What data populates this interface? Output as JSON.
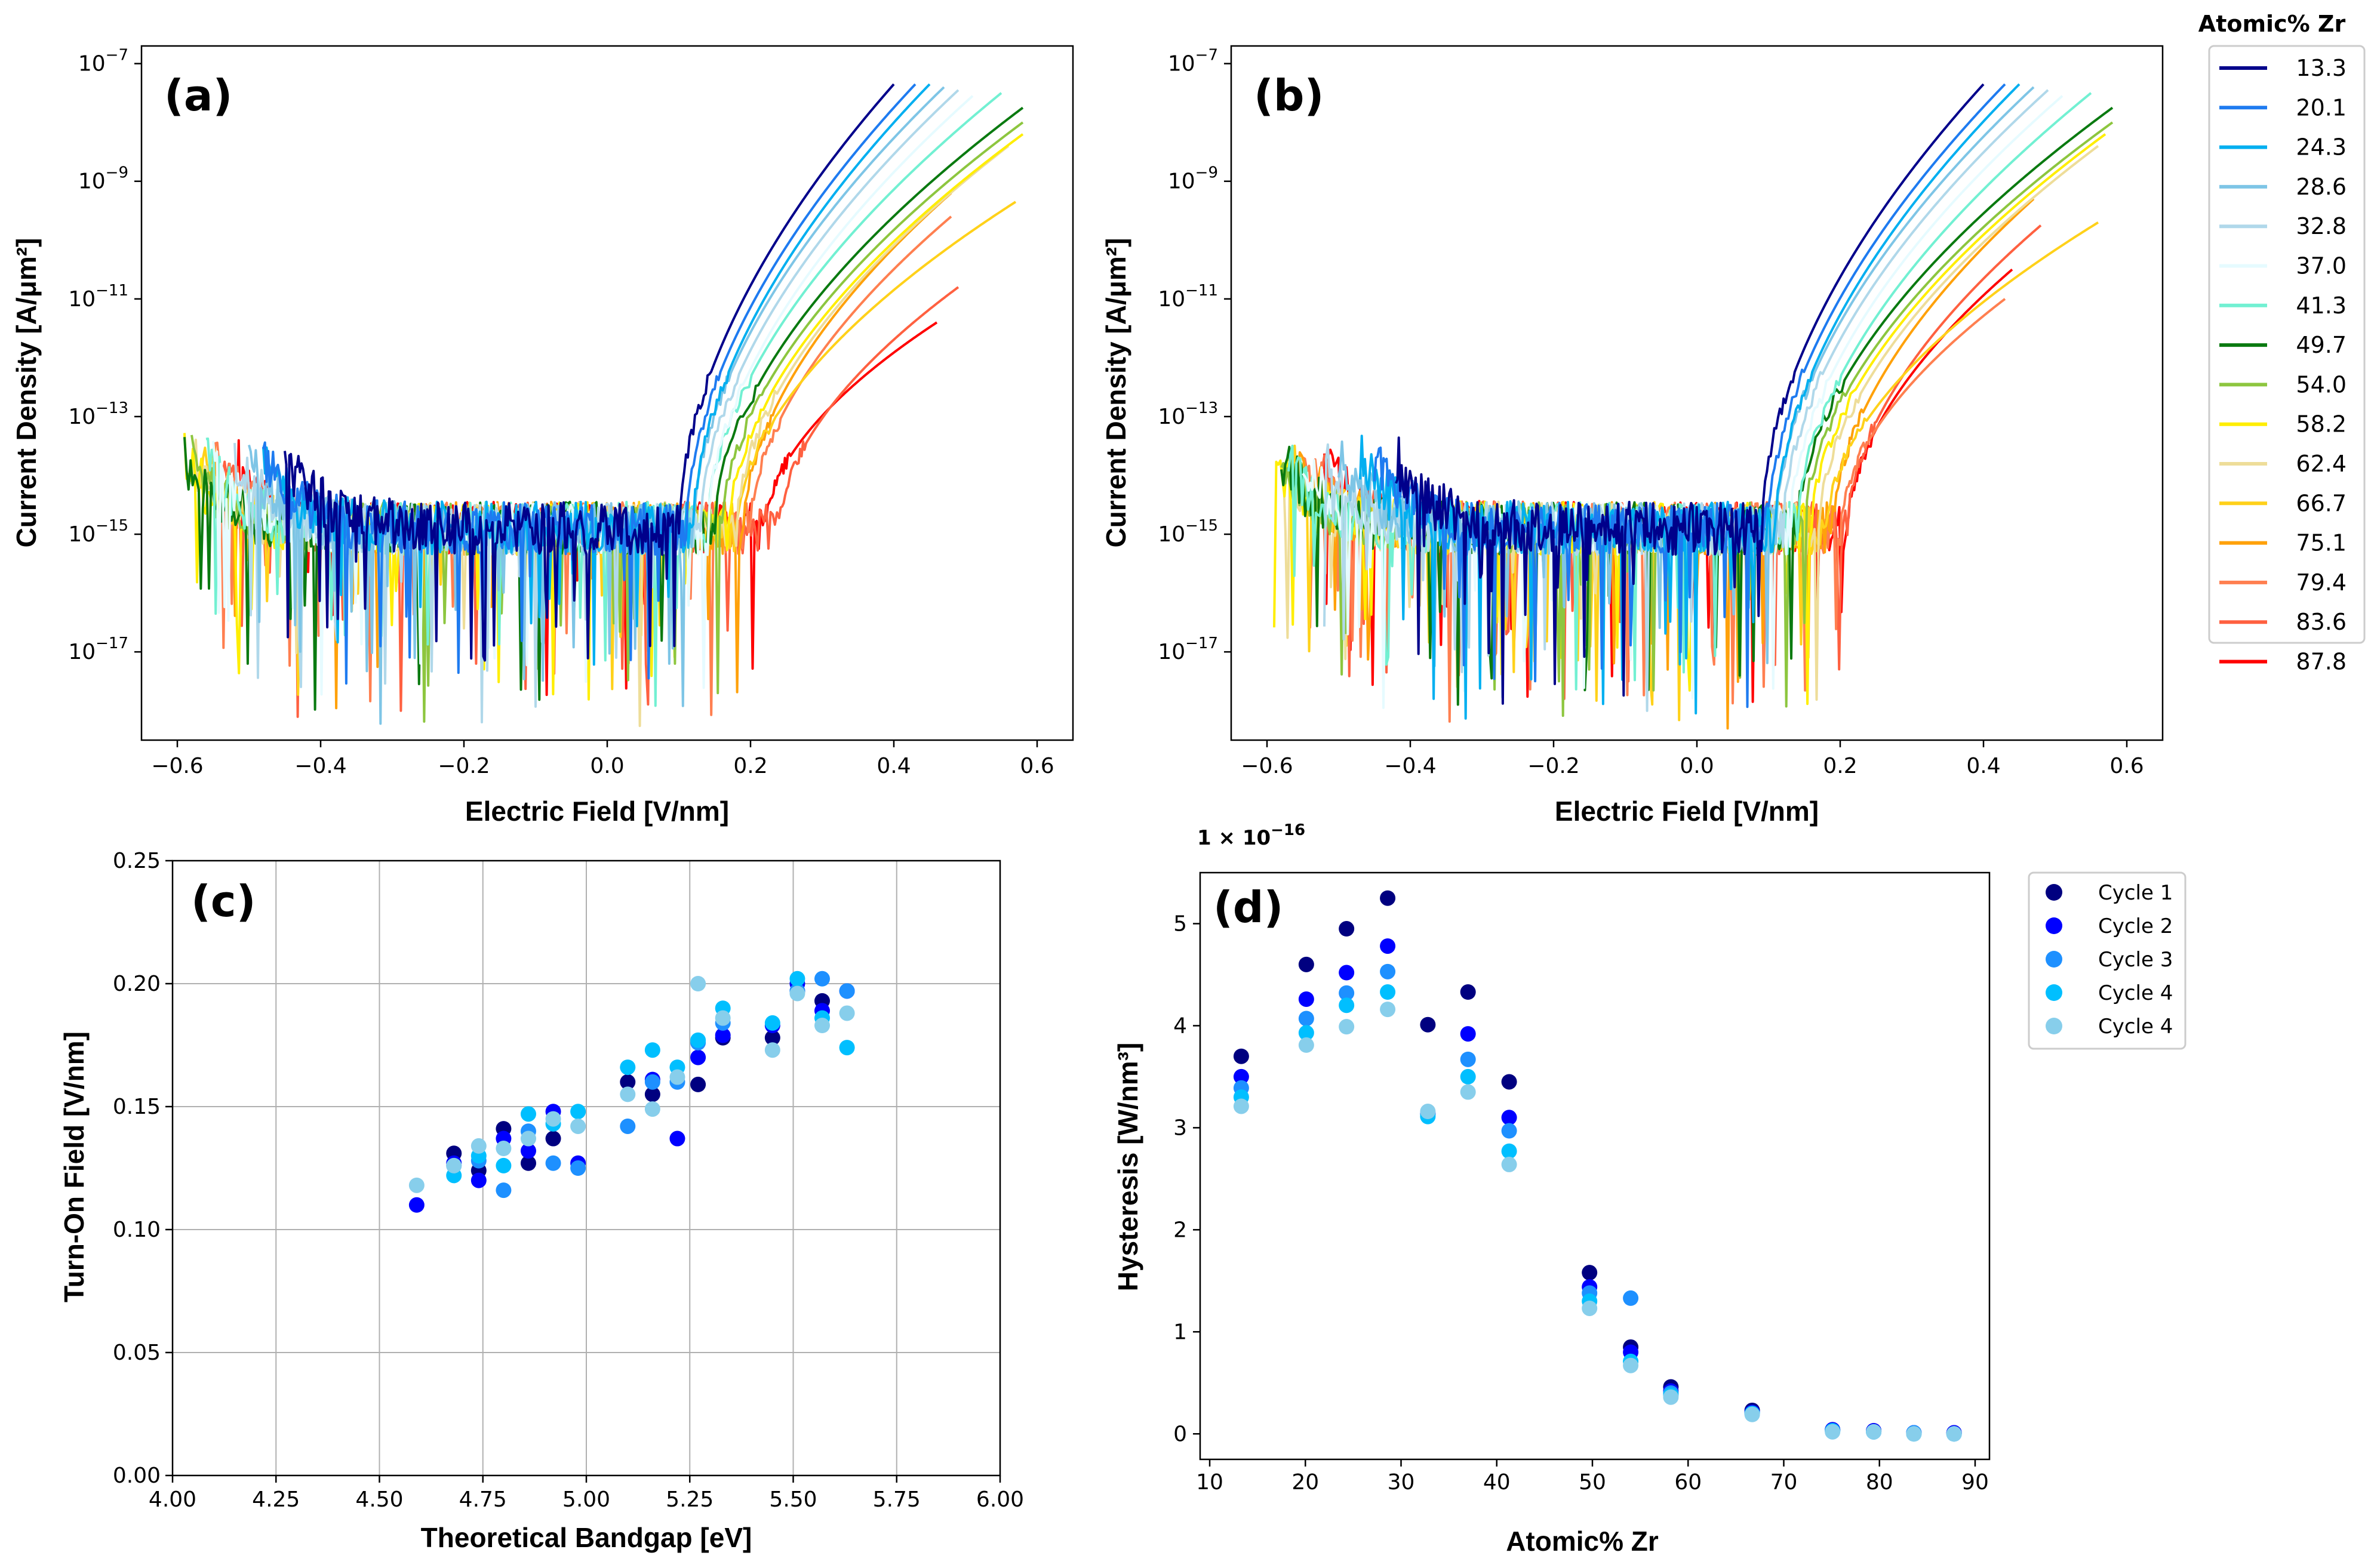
{
  "composition_legend": {
    "title": "Atomic% Zr",
    "items": [
      {
        "label": "13.3",
        "color": "#00008b"
      },
      {
        "label": "20.1",
        "color": "#1e7bf0"
      },
      {
        "label": "24.3",
        "color": "#00aff0"
      },
      {
        "label": "28.6",
        "color": "#7ec5e6"
      },
      {
        "label": "32.8",
        "color": "#b0d8ea"
      },
      {
        "label": "37.0",
        "color": "#e6fbff"
      },
      {
        "label": "41.3",
        "color": "#72f0d2"
      },
      {
        "label": "49.7",
        "color": "#0a7a10"
      },
      {
        "label": "54.0",
        "color": "#8dc63f"
      },
      {
        "label": "58.2",
        "color": "#ffee00"
      },
      {
        "label": "62.4",
        "color": "#eedd99"
      },
      {
        "label": "66.7",
        "color": "#ffd11a"
      },
      {
        "label": "75.1",
        "color": "#ffa10a"
      },
      {
        "label": "79.4",
        "color": "#ff7f50"
      },
      {
        "label": "83.6",
        "color": "#ff6040"
      },
      {
        "label": "87.8",
        "color": "#ff0000"
      }
    ]
  },
  "chart_data": [
    {
      "panel": "(a)",
      "type": "line",
      "xlabel": "Electric Field [V/nm]",
      "ylabel": "Current Density [A/μm²]",
      "yscale": "log",
      "xlim": [
        -0.65,
        0.65
      ],
      "ylim_exp": [
        -18.5,
        -6.7
      ],
      "xticks": [
        "−0.6",
        "−0.4",
        "−0.2",
        "0.0",
        "0.2",
        "0.4",
        "0.6"
      ],
      "yticks": [
        {
          "base": "10",
          "exp": "−7"
        },
        {
          "base": "10",
          "exp": "−9"
        },
        {
          "base": "10",
          "exp": "−11"
        },
        {
          "base": "10",
          "exp": "−13"
        },
        {
          "base": "10",
          "exp": "−15"
        },
        {
          "base": "10",
          "exp": "−17"
        }
      ],
      "noise_floor_log10": -14.9,
      "series": [
        {
          "name": "13.3",
          "x_min": -0.45,
          "onset": 0.1,
          "x_end": 0.4,
          "y_end_log10": -7.35
        },
        {
          "name": "20.1",
          "x_min": -0.48,
          "onset": 0.11,
          "x_end": 0.43,
          "y_end_log10": -7.35
        },
        {
          "name": "24.3",
          "x_min": -0.48,
          "onset": 0.12,
          "x_end": 0.45,
          "y_end_log10": -7.35
        },
        {
          "name": "28.6",
          "x_min": -0.5,
          "onset": 0.12,
          "x_end": 0.47,
          "y_end_log10": -7.4
        },
        {
          "name": "32.8",
          "x_min": -0.52,
          "onset": 0.13,
          "x_end": 0.49,
          "y_end_log10": -7.45
        },
        {
          "name": "37.0",
          "x_min": -0.55,
          "onset": 0.14,
          "x_end": 0.51,
          "y_end_log10": -7.55
        },
        {
          "name": "41.3",
          "x_min": -0.56,
          "onset": 0.14,
          "x_end": 0.55,
          "y_end_log10": -7.5
        },
        {
          "name": "49.7",
          "x_min": -0.59,
          "onset": 0.15,
          "x_end": 0.58,
          "y_end_log10": -7.75
        },
        {
          "name": "54.0",
          "x_min": -0.58,
          "onset": 0.16,
          "x_end": 0.58,
          "y_end_log10": -8.0
        },
        {
          "name": "58.2",
          "x_min": -0.59,
          "onset": 0.17,
          "x_end": 0.58,
          "y_end_log10": -8.2
        },
        {
          "name": "62.4",
          "x_min": -0.58,
          "onset": 0.18,
          "x_end": 0.56,
          "y_end_log10": -8.4
        },
        {
          "name": "66.7",
          "x_min": -0.57,
          "onset": 0.18,
          "x_end": 0.57,
          "y_end_log10": -9.35
        },
        {
          "name": "75.1",
          "x_min": -0.56,
          "onset": 0.19,
          "x_end": 0.48,
          "y_end_log10": -9.2
        },
        {
          "name": "79.4",
          "x_min": -0.55,
          "onset": 0.2,
          "x_end": 0.48,
          "y_end_log10": -9.6
        },
        {
          "name": "83.6",
          "x_min": -0.54,
          "onset": 0.24,
          "x_end": 0.49,
          "y_end_log10": -10.8
        },
        {
          "name": "87.8",
          "x_min": -0.52,
          "onset": 0.22,
          "x_end": 0.46,
          "y_end_log10": -11.4
        }
      ]
    },
    {
      "panel": "(b)",
      "type": "line",
      "xlabel": "Electric Field [V/nm]",
      "ylabel": "Current Density [A/μm²]",
      "yscale": "log",
      "xlim": [
        -0.65,
        0.65
      ],
      "ylim_exp": [
        -18.5,
        -6.7
      ],
      "xticks": [
        "−0.6",
        "−0.4",
        "−0.2",
        "0.0",
        "0.2",
        "0.4",
        "0.6"
      ],
      "yticks": [
        {
          "base": "10",
          "exp": "−7"
        },
        {
          "base": "10",
          "exp": "−9"
        },
        {
          "base": "10",
          "exp": "−11"
        },
        {
          "base": "10",
          "exp": "−13"
        },
        {
          "base": "10",
          "exp": "−15"
        },
        {
          "base": "10",
          "exp": "−17"
        }
      ],
      "noise_floor_log10": -14.9,
      "series": [
        {
          "name": "13.3",
          "x_min": -0.42,
          "onset": 0.09,
          "x_end": 0.4,
          "y_end_log10": -7.35
        },
        {
          "name": "20.1",
          "x_min": -0.45,
          "onset": 0.1,
          "x_end": 0.43,
          "y_end_log10": -7.35
        },
        {
          "name": "24.3",
          "x_min": -0.47,
          "onset": 0.11,
          "x_end": 0.45,
          "y_end_log10": -7.35
        },
        {
          "name": "28.6",
          "x_min": -0.5,
          "onset": 0.11,
          "x_end": 0.47,
          "y_end_log10": -7.4
        },
        {
          "name": "32.8",
          "x_min": -0.52,
          "onset": 0.12,
          "x_end": 0.49,
          "y_end_log10": -7.45
        },
        {
          "name": "37.0",
          "x_min": -0.55,
          "onset": 0.13,
          "x_end": 0.51,
          "y_end_log10": -7.55
        },
        {
          "name": "41.3",
          "x_min": -0.57,
          "onset": 0.14,
          "x_end": 0.55,
          "y_end_log10": -7.5
        },
        {
          "name": "49.7",
          "x_min": -0.58,
          "onset": 0.14,
          "x_end": 0.58,
          "y_end_log10": -7.75
        },
        {
          "name": "54.0",
          "x_min": -0.58,
          "onset": 0.15,
          "x_end": 0.58,
          "y_end_log10": -8.0
        },
        {
          "name": "58.2",
          "x_min": -0.59,
          "onset": 0.16,
          "x_end": 0.57,
          "y_end_log10": -8.2
        },
        {
          "name": "62.4",
          "x_min": -0.58,
          "onset": 0.17,
          "x_end": 0.56,
          "y_end_log10": -8.4
        },
        {
          "name": "66.7",
          "x_min": -0.57,
          "onset": 0.18,
          "x_end": 0.56,
          "y_end_log10": -9.7
        },
        {
          "name": "75.1",
          "x_min": -0.56,
          "onset": 0.19,
          "x_end": 0.47,
          "y_end_log10": -9.3
        },
        {
          "name": "79.4",
          "x_min": -0.55,
          "onset": 0.2,
          "x_end": 0.43,
          "y_end_log10": -11.0
        },
        {
          "name": "83.6",
          "x_min": -0.54,
          "onset": 0.21,
          "x_end": 0.48,
          "y_end_log10": -9.75
        },
        {
          "name": "87.8",
          "x_min": -0.52,
          "onset": 0.21,
          "x_end": 0.44,
          "y_end_log10": -10.5
        }
      ]
    },
    {
      "panel": "(c)",
      "type": "scatter",
      "xlabel": "Theoretical Bandgap [eV]",
      "ylabel": "Turn-On Field [V/nm]",
      "xlim": [
        4.0,
        6.0
      ],
      "ylim": [
        0.0,
        0.25
      ],
      "grid": true,
      "xticks": [
        "4.00",
        "4.25",
        "4.50",
        "4.75",
        "5.00",
        "5.25",
        "5.50",
        "5.75",
        "6.00"
      ],
      "yticks": [
        "0.00",
        "0.05",
        "0.10",
        "0.15",
        "0.20",
        "0.25"
      ],
      "x": [
        4.59,
        4.68,
        4.74,
        4.8,
        4.86,
        4.92,
        4.98,
        5.1,
        5.16,
        5.22,
        5.27,
        5.33,
        5.45,
        5.51,
        5.57,
        5.63
      ],
      "series": [
        {
          "name": "Cycle 1",
          "values": [
            null,
            0.131,
            0.124,
            0.141,
            0.127,
            0.137,
            null,
            0.16,
            0.155,
            null,
            0.159,
            0.178,
            0.178,
            0.197,
            0.193,
            null
          ]
        },
        {
          "name": "Cycle 2",
          "values": [
            0.11,
            0.127,
            0.12,
            0.137,
            0.132,
            0.148,
            0.127,
            null,
            0.161,
            0.137,
            0.17,
            0.179,
            0.183,
            0.2,
            0.189,
            0.197
          ]
        },
        {
          "name": "Cycle 3",
          "values": [
            null,
            0.126,
            0.128,
            0.116,
            0.14,
            0.127,
            0.125,
            0.142,
            0.16,
            0.16,
            0.176,
            0.184,
            null,
            0.197,
            0.202,
            0.197
          ]
        },
        {
          "name": "Cycle 4",
          "values": [
            null,
            0.122,
            0.13,
            0.126,
            0.147,
            0.143,
            0.148,
            0.166,
            0.173,
            0.166,
            0.177,
            0.19,
            0.184,
            0.202,
            0.186,
            0.174
          ]
        },
        {
          "name": "Cycle 4",
          "values": [
            0.118,
            0.126,
            0.134,
            0.133,
            0.137,
            0.145,
            0.142,
            0.155,
            0.149,
            0.162,
            0.2,
            0.186,
            0.173,
            0.196,
            0.183,
            0.188
          ]
        }
      ]
    },
    {
      "panel": "(d)",
      "type": "scatter",
      "xlabel": "Atomic% Zr",
      "ylabel": "Hysteresis [W/nm³]",
      "multiplier": {
        "base": "1 × 10",
        "exp": "−16"
      },
      "xlim": [
        9,
        91.5
      ],
      "ylim": [
        -0.25,
        5.5
      ],
      "xticks": [
        "10",
        "20",
        "30",
        "40",
        "50",
        "60",
        "70",
        "80",
        "90"
      ],
      "yticks": [
        "0",
        "1",
        "2",
        "3",
        "4",
        "5"
      ],
      "legend_position": "outside-right",
      "x": [
        13.3,
        20.1,
        24.3,
        28.6,
        32.8,
        37.0,
        41.3,
        49.7,
        54.0,
        58.2,
        66.7,
        75.1,
        79.4,
        83.6,
        87.8
      ],
      "series": [
        {
          "name": "Cycle 1",
          "color": "#000080",
          "values": [
            3.7,
            4.6,
            4.95,
            5.25,
            4.01,
            4.33,
            3.45,
            1.58,
            0.85,
            0.46,
            0.23,
            0.04,
            0.03,
            0.01,
            0.01
          ]
        },
        {
          "name": "Cycle 2",
          "color": "#0000ff",
          "values": [
            3.5,
            4.26,
            4.52,
            4.78,
            3.14,
            3.92,
            3.1,
            1.44,
            0.8,
            0.42,
            0.21,
            0.04,
            0.03,
            0.01,
            0.01
          ]
        },
        {
          "name": "Cycle 3",
          "color": "#1e90ff",
          "values": [
            3.39,
            4.07,
            4.32,
            4.53,
            3.13,
            3.67,
            2.97,
            1.38,
            1.33,
            0.4,
            0.2,
            0.03,
            0.02,
            0.01,
            0.0
          ]
        },
        {
          "name": "Cycle 4",
          "color": "#00bfff",
          "values": [
            3.3,
            3.93,
            4.2,
            4.33,
            3.11,
            3.5,
            2.77,
            1.3,
            0.71,
            0.38,
            0.2,
            0.03,
            0.02,
            0.0,
            0.0
          ]
        },
        {
          "name": "Cycle 4",
          "color": "#87ceeb",
          "values": [
            3.21,
            3.81,
            3.99,
            4.16,
            3.16,
            3.35,
            2.64,
            1.23,
            0.67,
            0.36,
            0.19,
            0.02,
            0.02,
            0.0,
            0.0
          ]
        }
      ]
    }
  ]
}
